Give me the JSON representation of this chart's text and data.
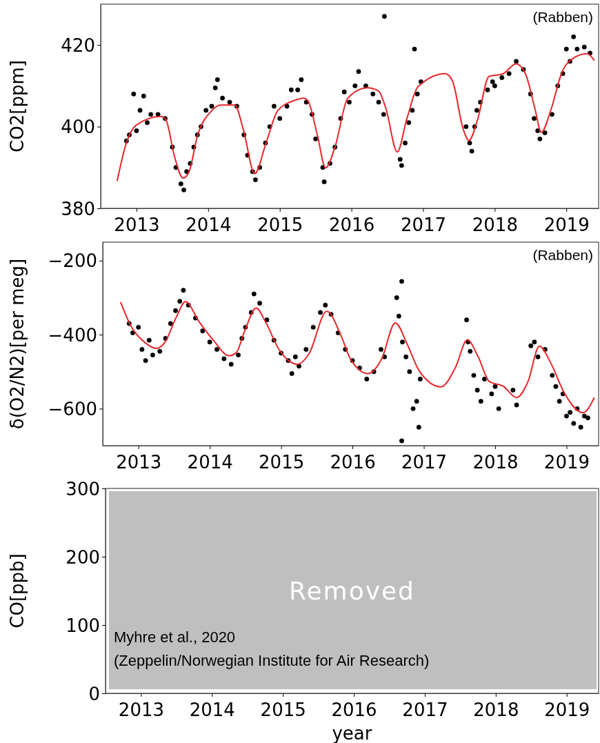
{
  "chart_data": [
    {
      "type": "scatter",
      "ylabel": "CO2[ppm]",
      "xlim": [
        2012.5,
        2019.45
      ],
      "ylim": [
        380,
        430
      ],
      "xticks": [
        2013,
        2014,
        2015,
        2016,
        2017,
        2018,
        2019
      ],
      "yticks": [
        380,
        400,
        420
      ],
      "grid": false,
      "annotations": [
        "(Rabben)"
      ],
      "series": [
        {
          "marker": "circle",
          "color": "#000000",
          "x": [
            2012.86,
            2012.9,
            2012.96,
            2013.0,
            2013.05,
            2013.1,
            2013.15,
            2013.2,
            2013.3,
            2013.4,
            2013.5,
            2013.55,
            2013.62,
            2013.66,
            2013.7,
            2013.75,
            2013.8,
            2013.85,
            2013.9,
            2013.97,
            2014.05,
            2014.1,
            2014.13,
            2014.2,
            2014.3,
            2014.4,
            2014.5,
            2014.55,
            2014.62,
            2014.66,
            2014.72,
            2014.8,
            2014.86,
            2014.92,
            2015.0,
            2015.1,
            2015.16,
            2015.25,
            2015.3,
            2015.37,
            2015.45,
            2015.5,
            2015.6,
            2015.62,
            2015.7,
            2015.77,
            2015.85,
            2015.9,
            2015.97,
            2016.05,
            2016.1,
            2016.2,
            2016.3,
            2016.38,
            2016.45,
            2016.46,
            2016.68,
            2016.7,
            2016.75,
            2016.8,
            2016.85,
            2016.88,
            2016.92,
            2016.97,
            2017.6,
            2017.65,
            2017.68,
            2017.72,
            2017.75,
            2017.8,
            2017.9,
            2017.97,
            2018.0,
            2018.1,
            2018.2,
            2018.3,
            2018.4,
            2018.5,
            2018.55,
            2018.6,
            2018.63,
            2018.7,
            2018.8,
            2018.88,
            2018.95,
            2019.0,
            2019.05,
            2019.1,
            2019.15,
            2019.25,
            2019.33
          ],
          "values": [
            396.5,
            398,
            408,
            399,
            404,
            407.5,
            401,
            403,
            403,
            402,
            395,
            390,
            386,
            384.5,
            389,
            391,
            395,
            398,
            400,
            404,
            405,
            409.5,
            411.5,
            407,
            406,
            405,
            398,
            393,
            389,
            387,
            390,
            396,
            400,
            405,
            402,
            405,
            409,
            409,
            411.5,
            406,
            403,
            397,
            390,
            386.5,
            391,
            395,
            402,
            408.5,
            406,
            410,
            413.5,
            410,
            408,
            406,
            403,
            427,
            392,
            390.5,
            396,
            401,
            404,
            419,
            408,
            411,
            400,
            396,
            394,
            400,
            404,
            406,
            409,
            411,
            410,
            412,
            413,
            416,
            414,
            408,
            402,
            399,
            397,
            398.5,
            403,
            410,
            413,
            419,
            416,
            422,
            419,
            419.5,
            418
          ]
        },
        {
          "type": "line",
          "color": "#e8262a",
          "x": [
            2012.73,
            2012.86,
            2012.99,
            2013.34,
            2013.41,
            2013.53,
            2013.65,
            2013.73,
            2013.85,
            2014.05,
            2014.17,
            2014.37,
            2014.49,
            2014.65,
            2014.81,
            2014.97,
            2015.2,
            2015.33,
            2015.39,
            2015.52,
            2015.64,
            2015.77,
            2015.95,
            2016.22,
            2016.38,
            2016.48,
            2016.64,
            2016.77,
            2016.93,
            2017.31,
            2017.41,
            2017.56,
            2017.64,
            2017.76,
            2017.92,
            2018.11,
            2018.3,
            2018.43,
            2018.56,
            2018.65,
            2018.78,
            2018.94,
            2019.1,
            2019.29,
            2019.39
          ],
          "values": [
            386.7,
            396.1,
            400.3,
            402.5,
            401.7,
            392.7,
            387.4,
            388.8,
            397.7,
            403.9,
            405.3,
            405.3,
            399.4,
            388.5,
            396.1,
            403.9,
            406.4,
            407.0,
            406.4,
            398.3,
            389.9,
            395.0,
            407.0,
            409.5,
            408.7,
            404.5,
            393.8,
            401.7,
            409.8,
            413.0,
            411.2,
            399.4,
            396.6,
            401.7,
            412.3,
            412.9,
            415.4,
            412.9,
            404.5,
            398.6,
            403.9,
            413.4,
            416.8,
            417.9,
            416.2
          ]
        }
      ]
    },
    {
      "type": "scatter",
      "ylabel": "δ(O2/N2)[per meg]",
      "xlim": [
        2012.5,
        2019.45
      ],
      "ylim": [
        -700,
        -150
      ],
      "xticks": [
        2013,
        2014,
        2015,
        2016,
        2017,
        2018,
        2019
      ],
      "yticks": [
        {
          "value": -600,
          "label": "−600"
        },
        {
          "value": -400,
          "label": "−400"
        },
        {
          "value": -200,
          "label": "−200"
        }
      ],
      "grid": false,
      "annotations": [
        "(Rabben)"
      ],
      "series": [
        {
          "marker": "circle",
          "color": "#000000",
          "x": [
            2012.87,
            2012.92,
            2013.0,
            2013.05,
            2013.1,
            2013.15,
            2013.2,
            2013.3,
            2013.38,
            2013.45,
            2013.52,
            2013.58,
            2013.63,
            2013.7,
            2013.8,
            2013.9,
            2014.0,
            2014.1,
            2014.2,
            2014.3,
            2014.4,
            2014.45,
            2014.5,
            2014.58,
            2014.62,
            2014.7,
            2014.8,
            2014.9,
            2015.0,
            2015.1,
            2015.15,
            2015.2,
            2015.25,
            2015.35,
            2015.45,
            2015.55,
            2015.62,
            2015.7,
            2015.8,
            2015.9,
            2016.0,
            2016.1,
            2016.2,
            2016.3,
            2016.4,
            2016.45,
            2016.62,
            2016.69,
            2016.69,
            2016.65,
            2016.7,
            2016.75,
            2016.8,
            2016.85,
            2016.9,
            2016.93,
            2016.95,
            2017.6,
            2017.62,
            2017.65,
            2017.7,
            2017.75,
            2017.8,
            2017.85,
            2017.95,
            2018.0,
            2018.05,
            2018.25,
            2018.3,
            2018.5,
            2018.55,
            2018.6,
            2018.7,
            2018.8,
            2018.85,
            2018.9,
            2018.95,
            2019.0,
            2019.05,
            2019.1,
            2019.15,
            2019.2,
            2019.25,
            2019.3
          ],
          "values": [
            -370,
            -395,
            -380,
            -440,
            -470,
            -415,
            -455,
            -445,
            -410,
            -370,
            -335,
            -310,
            -280,
            -320,
            -355,
            -390,
            -420,
            -440,
            -465,
            -480,
            -455,
            -410,
            -380,
            -340,
            -290,
            -315,
            -360,
            -415,
            -450,
            -470,
            -505,
            -460,
            -485,
            -440,
            -380,
            -340,
            -320,
            -345,
            -395,
            -440,
            -470,
            -490,
            -520,
            -500,
            -440,
            -460,
            -300,
            -256,
            -687,
            -350,
            -420,
            -460,
            -500,
            -600,
            -580,
            -650,
            -520,
            -360,
            -420,
            -445,
            -510,
            -550,
            -580,
            -520,
            -560,
            -540,
            -600,
            -550,
            -590,
            -430,
            -420,
            -460,
            -440,
            -510,
            -540,
            -580,
            -560,
            -620,
            -610,
            -640,
            -600,
            -650,
            -620,
            -625
          ]
        },
        {
          "type": "line",
          "color": "#e8262a",
          "x": [
            2012.75,
            2012.89,
            2013.09,
            2013.25,
            2013.37,
            2013.53,
            2013.66,
            2013.85,
            2014.05,
            2014.27,
            2014.37,
            2014.49,
            2014.65,
            2014.78,
            2014.97,
            2015.23,
            2015.39,
            2015.64,
            2015.84,
            2015.97,
            2016.22,
            2016.41,
            2016.6,
            2016.77,
            2016.93,
            2017.24,
            2017.44,
            2017.61,
            2017.76,
            2017.92,
            2018.11,
            2018.3,
            2018.46,
            2018.62,
            2018.78,
            2018.97,
            2019.23,
            2019.39
          ],
          "values": [
            -312,
            -375,
            -421,
            -437,
            -421,
            -353,
            -311,
            -365,
            -415,
            -457,
            -449,
            -390,
            -328,
            -365,
            -440,
            -480,
            -452,
            -337,
            -403,
            -465,
            -505,
            -465,
            -368,
            -427,
            -496,
            -541,
            -490,
            -414,
            -459,
            -527,
            -539,
            -570,
            -527,
            -431,
            -477,
            -558,
            -611,
            -570
          ]
        }
      ]
    },
    {
      "type": "line",
      "xlabel": "year",
      "ylabel": "CO[ppb]",
      "xlim": [
        2012.5,
        2019.45
      ],
      "ylim": [
        0,
        300
      ],
      "xticks": [
        2013,
        2014,
        2015,
        2016,
        2017,
        2018,
        2019
      ],
      "yticks": [
        0,
        100,
        200,
        300
      ],
      "grid": false,
      "annotations": [
        "Removed",
        "Myhre et al., 2020",
        "(Zeppelin/Norwegian Institute for Air Research)"
      ]
    }
  ]
}
